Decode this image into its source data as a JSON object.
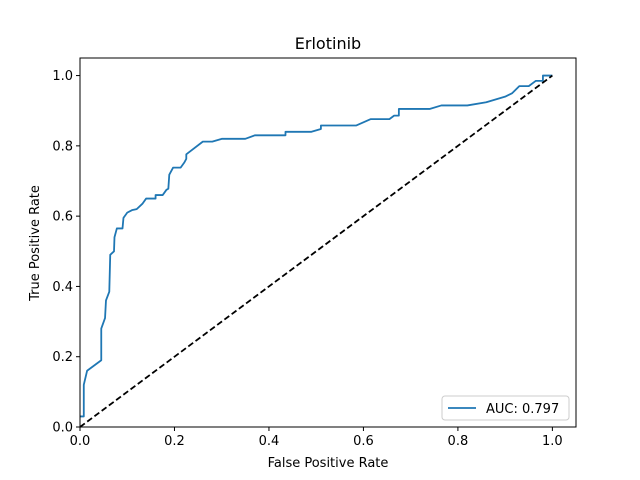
{
  "chart_data": {
    "type": "line",
    "title": "Erlotinib",
    "xlabel": "False Positive Rate",
    "ylabel": "True Positive Rate",
    "xlim": [
      0.0,
      1.05
    ],
    "ylim": [
      0.0,
      1.05
    ],
    "xticks": [
      "0.0",
      "0.2",
      "0.4",
      "0.6",
      "0.8",
      "1.0"
    ],
    "yticks": [
      "0.0",
      "0.2",
      "0.4",
      "0.6",
      "0.8",
      "1.0"
    ],
    "grid": false,
    "legend_position": "lower-right",
    "series": [
      {
        "name": "AUC: 0.797",
        "color": "#1f77b4",
        "style": "solid",
        "points": [
          [
            0.0,
            0.03
          ],
          [
            0.008,
            0.03
          ],
          [
            0.008,
            0.12
          ],
          [
            0.015,
            0.16
          ],
          [
            0.045,
            0.19
          ],
          [
            0.045,
            0.28
          ],
          [
            0.053,
            0.31
          ],
          [
            0.055,
            0.36
          ],
          [
            0.062,
            0.385
          ],
          [
            0.064,
            0.49
          ],
          [
            0.072,
            0.5
          ],
          [
            0.073,
            0.54
          ],
          [
            0.078,
            0.565
          ],
          [
            0.09,
            0.565
          ],
          [
            0.092,
            0.595
          ],
          [
            0.1,
            0.61
          ],
          [
            0.11,
            0.617
          ],
          [
            0.12,
            0.62
          ],
          [
            0.132,
            0.635
          ],
          [
            0.14,
            0.65
          ],
          [
            0.15,
            0.65
          ],
          [
            0.16,
            0.65
          ],
          [
            0.16,
            0.66
          ],
          [
            0.175,
            0.66
          ],
          [
            0.183,
            0.675
          ],
          [
            0.187,
            0.678
          ],
          [
            0.189,
            0.718
          ],
          [
            0.197,
            0.738
          ],
          [
            0.213,
            0.738
          ],
          [
            0.221,
            0.753
          ],
          [
            0.225,
            0.763
          ],
          [
            0.225,
            0.776
          ],
          [
            0.26,
            0.812
          ],
          [
            0.28,
            0.812
          ],
          [
            0.3,
            0.82
          ],
          [
            0.35,
            0.82
          ],
          [
            0.37,
            0.83
          ],
          [
            0.435,
            0.83
          ],
          [
            0.435,
            0.84
          ],
          [
            0.49,
            0.84
          ],
          [
            0.51,
            0.848
          ],
          [
            0.51,
            0.858
          ],
          [
            0.585,
            0.858
          ],
          [
            0.615,
            0.876
          ],
          [
            0.655,
            0.876
          ],
          [
            0.665,
            0.886
          ],
          [
            0.675,
            0.886
          ],
          [
            0.675,
            0.905
          ],
          [
            0.74,
            0.905
          ],
          [
            0.765,
            0.915
          ],
          [
            0.82,
            0.915
          ],
          [
            0.86,
            0.924
          ],
          [
            0.9,
            0.94
          ],
          [
            0.915,
            0.95
          ],
          [
            0.93,
            0.97
          ],
          [
            0.95,
            0.97
          ],
          [
            0.965,
            0.985
          ],
          [
            0.98,
            0.985
          ],
          [
            0.98,
            1.0
          ],
          [
            1.0,
            1.0
          ]
        ]
      },
      {
        "name": "",
        "color": "#000000",
        "style": "dashed",
        "points": [
          [
            0.0,
            0.0
          ],
          [
            1.0,
            1.0
          ]
        ]
      }
    ]
  }
}
